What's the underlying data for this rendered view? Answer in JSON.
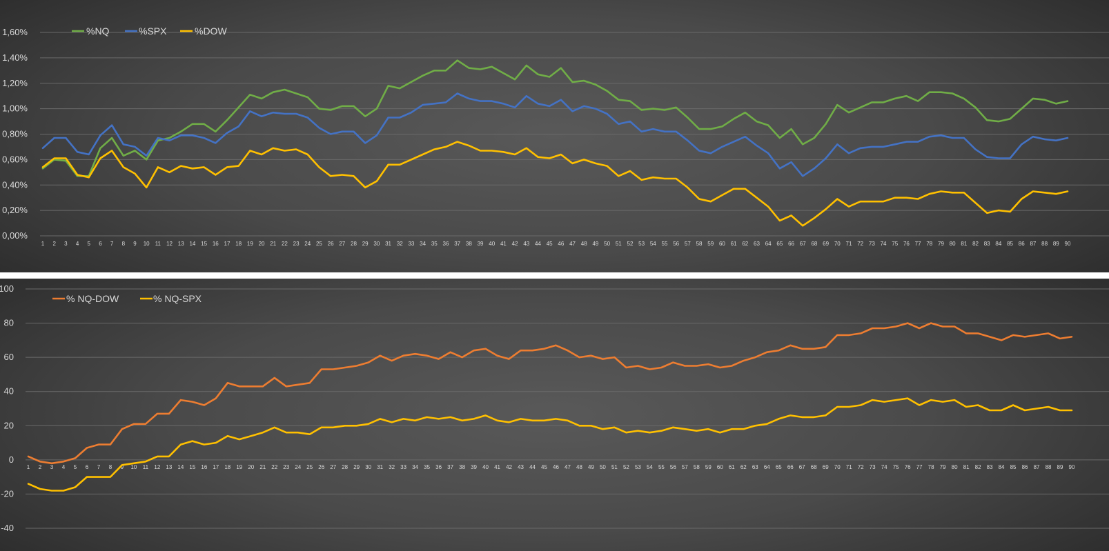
{
  "chart_data": [
    {
      "type": "line",
      "ylim": [
        0,
        1.6
      ],
      "ytick_values": [
        0,
        0.2,
        0.4,
        0.6,
        0.8,
        1.0,
        1.2,
        1.4,
        1.6
      ],
      "ytick_labels": [
        "0,00%",
        "0,20%",
        "0,40%",
        "0,60%",
        "0,80%",
        "1,00%",
        "1,20%",
        "1,40%",
        "1,60%"
      ],
      "grid": true,
      "legend_position": "top-left",
      "x": [
        1,
        2,
        3,
        4,
        5,
        6,
        7,
        8,
        9,
        10,
        11,
        12,
        13,
        14,
        15,
        16,
        17,
        18,
        19,
        20,
        21,
        22,
        23,
        24,
        25,
        26,
        27,
        28,
        29,
        30,
        31,
        32,
        33,
        34,
        35,
        36,
        37,
        38,
        39,
        40,
        41,
        42,
        43,
        44,
        45,
        46,
        47,
        48,
        49,
        50,
        51,
        52,
        53,
        54,
        55,
        56,
        57,
        58,
        59,
        60,
        61,
        62,
        63,
        64,
        65,
        66,
        67,
        68,
        69,
        70,
        71,
        72,
        73,
        74,
        75,
        76,
        77,
        78,
        79,
        80,
        81,
        82,
        83,
        84,
        85,
        86,
        87,
        88,
        89,
        90
      ],
      "series": [
        {
          "name": "%NQ",
          "color": "#70ad47",
          "values": [
            0.53,
            0.6,
            0.59,
            0.47,
            0.47,
            0.69,
            0.77,
            0.63,
            0.67,
            0.6,
            0.75,
            0.77,
            0.82,
            0.88,
            0.88,
            0.82,
            0.91,
            1.01,
            1.11,
            1.08,
            1.13,
            1.15,
            1.12,
            1.09,
            1.0,
            0.99,
            1.02,
            1.02,
            0.94,
            1.0,
            1.18,
            1.16,
            1.21,
            1.26,
            1.3,
            1.3,
            1.38,
            1.32,
            1.31,
            1.33,
            1.28,
            1.23,
            1.34,
            1.27,
            1.25,
            1.32,
            1.21,
            1.22,
            1.19,
            1.14,
            1.07,
            1.06,
            0.99,
            1.0,
            0.99,
            1.01,
            0.93,
            0.84,
            0.84,
            0.86,
            0.92,
            0.97,
            0.9,
            0.87,
            0.77,
            0.84,
            0.72,
            0.77,
            0.88,
            1.03,
            0.97,
            1.01,
            1.05,
            1.05,
            1.08,
            1.1,
            1.06,
            1.13,
            1.13,
            1.12,
            1.08,
            1.01,
            0.91,
            0.9,
            0.92,
            1.0,
            1.08,
            1.07,
            1.04,
            1.06
          ]
        },
        {
          "name": "%SPX",
          "color": "#4472c4",
          "values": [
            0.69,
            0.77,
            0.77,
            0.66,
            0.64,
            0.79,
            0.87,
            0.72,
            0.7,
            0.63,
            0.77,
            0.75,
            0.79,
            0.79,
            0.77,
            0.73,
            0.81,
            0.86,
            0.98,
            0.94,
            0.97,
            0.96,
            0.96,
            0.93,
            0.85,
            0.8,
            0.82,
            0.82,
            0.73,
            0.79,
            0.93,
            0.93,
            0.97,
            1.03,
            1.04,
            1.05,
            1.12,
            1.08,
            1.06,
            1.06,
            1.04,
            1.01,
            1.1,
            1.04,
            1.02,
            1.07,
            0.98,
            1.02,
            1.0,
            0.96,
            0.88,
            0.9,
            0.82,
            0.84,
            0.82,
            0.82,
            0.75,
            0.67,
            0.65,
            0.7,
            0.74,
            0.78,
            0.71,
            0.65,
            0.53,
            0.58,
            0.47,
            0.53,
            0.61,
            0.72,
            0.65,
            0.69,
            0.7,
            0.7,
            0.72,
            0.74,
            0.74,
            0.78,
            0.79,
            0.77,
            0.77,
            0.68,
            0.62,
            0.61,
            0.61,
            0.72,
            0.78,
            0.76,
            0.75,
            0.77
          ]
        },
        {
          "name": "%DOW",
          "color": "#ffc000",
          "values": [
            0.54,
            0.61,
            0.61,
            0.48,
            0.46,
            0.61,
            0.67,
            0.54,
            0.49,
            0.38,
            0.54,
            0.5,
            0.55,
            0.53,
            0.54,
            0.48,
            0.54,
            0.55,
            0.67,
            0.64,
            0.69,
            0.67,
            0.68,
            0.64,
            0.54,
            0.47,
            0.48,
            0.47,
            0.38,
            0.43,
            0.56,
            0.56,
            0.6,
            0.64,
            0.68,
            0.7,
            0.74,
            0.71,
            0.67,
            0.67,
            0.66,
            0.64,
            0.69,
            0.62,
            0.61,
            0.64,
            0.57,
            0.6,
            0.57,
            0.55,
            0.47,
            0.51,
            0.44,
            0.46,
            0.45,
            0.45,
            0.38,
            0.29,
            0.27,
            0.32,
            0.37,
            0.37,
            0.3,
            0.23,
            0.12,
            0.16,
            0.08,
            0.14,
            0.21,
            0.29,
            0.23,
            0.27,
            0.27,
            0.27,
            0.3,
            0.3,
            0.29,
            0.33,
            0.35,
            0.34,
            0.34,
            0.26,
            0.18,
            0.2,
            0.19,
            0.29,
            0.35,
            0.34,
            0.33,
            0.35
          ]
        }
      ]
    },
    {
      "type": "line",
      "ylim": [
        -40,
        100
      ],
      "ytick_values": [
        -40,
        -20,
        0,
        20,
        40,
        60,
        80,
        100
      ],
      "ytick_labels": [
        "-40",
        "-20",
        "0",
        "20",
        "40",
        "60",
        "80",
        "100"
      ],
      "grid": true,
      "legend_position": "top-left",
      "x": [
        1,
        2,
        3,
        4,
        5,
        6,
        7,
        8,
        9,
        10,
        11,
        12,
        13,
        14,
        15,
        16,
        17,
        18,
        19,
        20,
        21,
        22,
        23,
        24,
        25,
        26,
        27,
        28,
        29,
        30,
        31,
        32,
        33,
        34,
        35,
        36,
        37,
        38,
        39,
        40,
        41,
        42,
        43,
        44,
        45,
        46,
        47,
        48,
        49,
        50,
        51,
        52,
        53,
        54,
        55,
        56,
        57,
        58,
        59,
        60,
        61,
        62,
        63,
        64,
        65,
        66,
        67,
        68,
        69,
        70,
        71,
        72,
        73,
        74,
        75,
        76,
        77,
        78,
        79,
        80,
        81,
        82,
        83,
        84,
        85,
        86,
        87,
        88,
        89,
        90
      ],
      "series": [
        {
          "name": "% NQ-DOW",
          "color": "#ed7d31",
          "values": [
            2,
            -1,
            -2,
            -1,
            1,
            7,
            9,
            9,
            18,
            21,
            21,
            27,
            27,
            35,
            34,
            32,
            36,
            45,
            43,
            43,
            43,
            48,
            43,
            44,
            45,
            53,
            53,
            54,
            55,
            57,
            61,
            58,
            61,
            62,
            61,
            59,
            63,
            60,
            64,
            65,
            61,
            59,
            64,
            64,
            65,
            67,
            64,
            60,
            61,
            59,
            60,
            54,
            55,
            53,
            54,
            57,
            55,
            55,
            56,
            54,
            55,
            58,
            60,
            63,
            64,
            67,
            65,
            65,
            66,
            73,
            73,
            74,
            77,
            77,
            78,
            80,
            77,
            80,
            78,
            78,
            74,
            74,
            72,
            70,
            73,
            72,
            73,
            74,
            71,
            72
          ]
        },
        {
          "name": "% NQ-SPX",
          "color": "#ffc000",
          "values": [
            -14,
            -17,
            -18,
            -18,
            -16,
            -10,
            -10,
            -10,
            -3,
            -2,
            -1,
            2,
            2,
            9,
            11,
            9,
            10,
            14,
            12,
            14,
            16,
            19,
            16,
            16,
            15,
            19,
            19,
            20,
            20,
            21,
            24,
            22,
            24,
            23,
            25,
            24,
            25,
            23,
            24,
            26,
            23,
            22,
            24,
            23,
            23,
            24,
            23,
            20,
            20,
            18,
            19,
            16,
            17,
            16,
            17,
            19,
            18,
            17,
            18,
            16,
            18,
            18,
            20,
            21,
            24,
            26,
            25,
            25,
            26,
            31,
            31,
            32,
            35,
            34,
            35,
            36,
            32,
            35,
            34,
            35,
            31,
            32,
            29,
            29,
            32,
            29,
            30,
            31,
            29,
            29
          ]
        }
      ]
    }
  ]
}
